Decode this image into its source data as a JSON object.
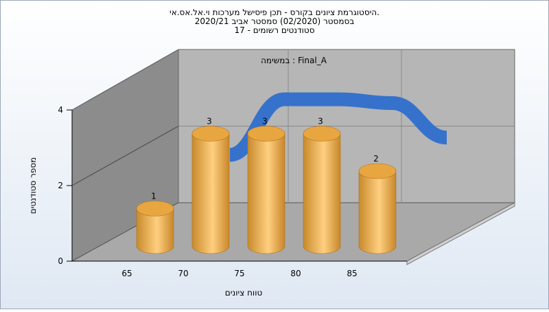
{
  "chart_data": {
    "type": "bar3d",
    "title_lines": [
      "היסטוגרמת ציונים בקורס - תכן פיסישל מערכות וי.אל.אס.אי.",
      "בסמסטר  (02/2020)  סמסטר אביב 2020/21",
      "סטודנטים רשומים - 17"
    ],
    "annotation": "במשימה : Final_A",
    "x_label": "טווח ציונים",
    "y_label": "מספר סטודנטים",
    "categories": [
      "65",
      "70",
      "75",
      "80",
      "85"
    ],
    "values": [
      1,
      3,
      3,
      3,
      2
    ],
    "color": "#e8a640",
    "curve": {
      "color": "#3672cc",
      "values": [
        1.25,
        2.7,
        2.7,
        2.6,
        1.7
      ]
    },
    "ylim": [
      0,
      4
    ],
    "yticks": [
      0,
      2,
      4
    ],
    "grid": true
  }
}
